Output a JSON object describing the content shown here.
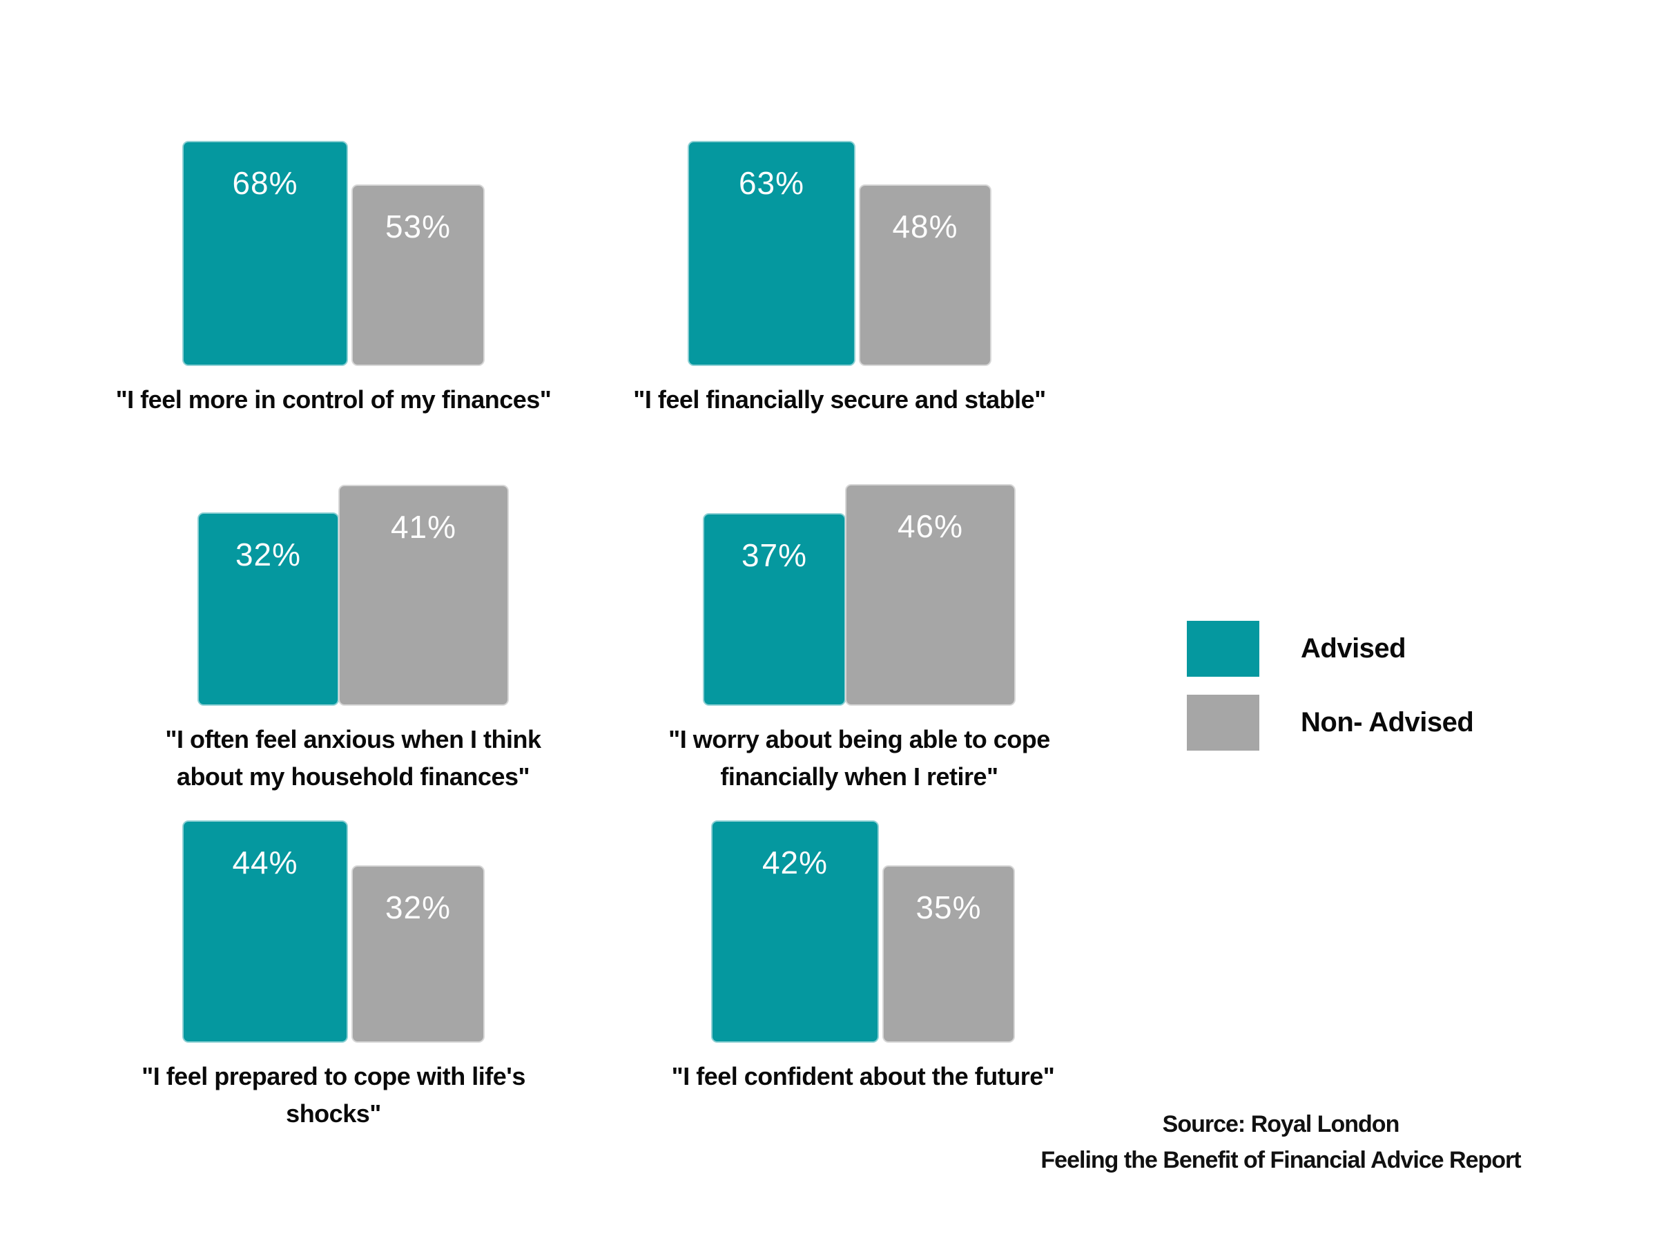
{
  "page": {
    "background": "#ffffff"
  },
  "colors": {
    "advised": "#05989f",
    "non_advised": "#a6a6a6",
    "value_label": "#ffffff",
    "caption_text": "#0a0a0a"
  },
  "chart_data": {
    "type": "bar",
    "unit": "%",
    "categories": [
      "\"I feel more in control of my finances\"",
      "\"I feel financially secure and stable\"",
      "\"I often feel anxious when I think about my household finances\"",
      "\"I worry about being able to cope financially when I retire\"",
      "\"I feel prepared to cope with life's shocks\"",
      "\"I feel confident about the future\""
    ],
    "series": [
      {
        "name": "Advised",
        "color": "#05989f",
        "values": [
          68,
          63,
          32,
          37,
          44,
          42
        ]
      },
      {
        "name": "Non- Advised",
        "color": "#a6a6a6",
        "values": [
          53,
          48,
          41,
          46,
          32,
          35
        ]
      }
    ],
    "value_labels_shown": true,
    "axes_shown": false,
    "grid": false,
    "legend_position": "right",
    "layout": "2-column grid of 6 paired-bar mini charts"
  },
  "charts": [
    {
      "advised_label": "68%",
      "non_advised_label": "53%",
      "caption_line1": "\"I feel more in control of my finances\"",
      "caption_line2": ""
    },
    {
      "advised_label": "63%",
      "non_advised_label": "48%",
      "caption_line1": "\"I feel financially secure and stable\"",
      "caption_line2": ""
    },
    {
      "advised_label": "32%",
      "non_advised_label": "41%",
      "caption_line1": "\"I often feel anxious when I think",
      "caption_line2": "about my household finances\""
    },
    {
      "advised_label": "37%",
      "non_advised_label": "46%",
      "caption_line1": "\"I worry about being able to cope",
      "caption_line2": "financially when I retire\""
    },
    {
      "advised_label": "44%",
      "non_advised_label": "32%",
      "caption_line1": "\"I feel prepared to cope with life's",
      "caption_line2": "shocks\""
    },
    {
      "advised_label": "42%",
      "non_advised_label": "35%",
      "caption_line1": "\"I feel confident about the future\"",
      "caption_line2": ""
    }
  ],
  "legend": {
    "items": [
      {
        "label": "Advised",
        "color": "#05989f"
      },
      {
        "label": "Non- Advised",
        "color": "#a6a6a6"
      }
    ]
  },
  "source": {
    "line1": "Source: Royal London",
    "line2": "Feeling the Benefit of Financial Advice Report"
  }
}
